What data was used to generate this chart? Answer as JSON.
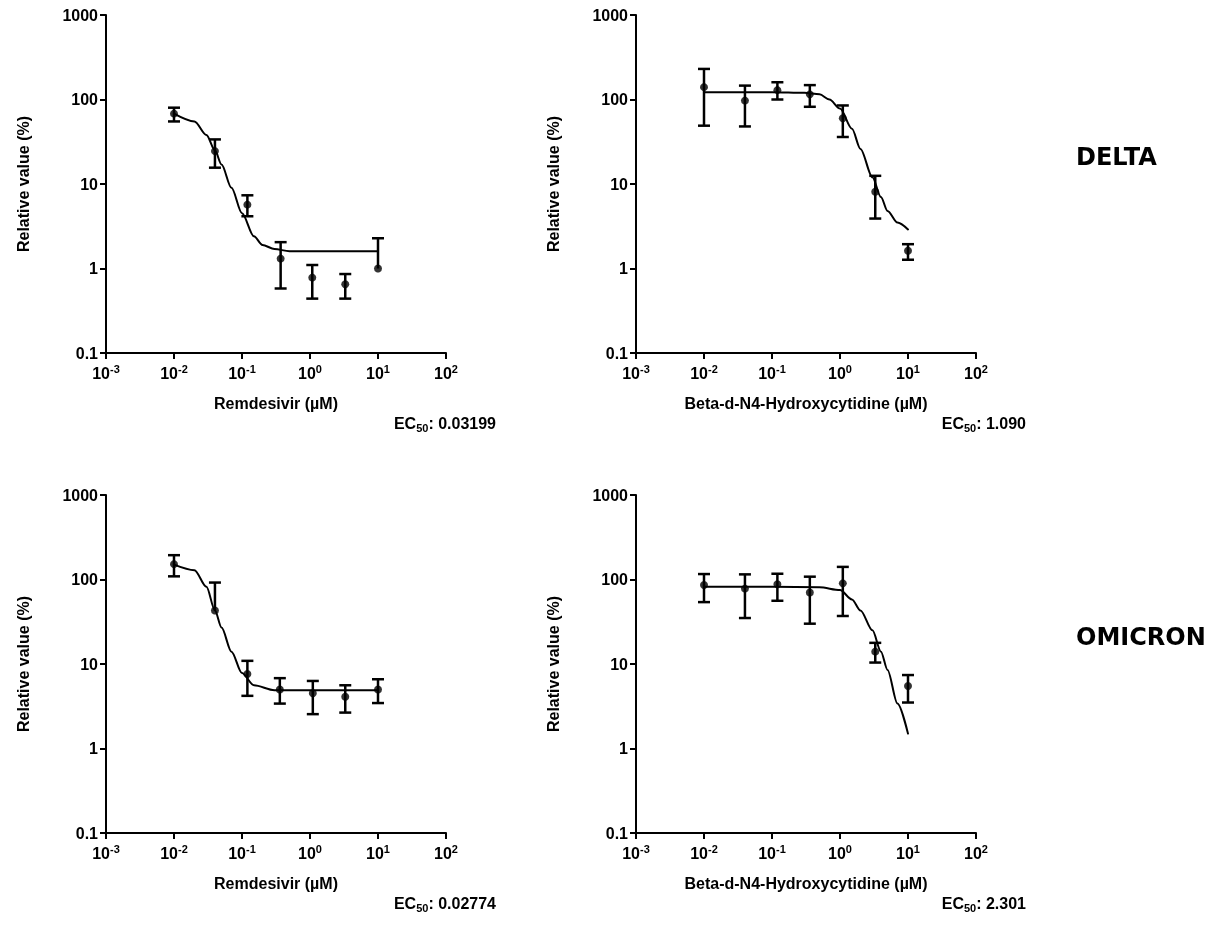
{
  "chart_data": [
    {
      "type": "scatter",
      "xlabel": "Remdesivir (µM)",
      "ylabel": "Relative value (%)",
      "log": "xy",
      "marker": "circle",
      "xlim": [
        0.001,
        100
      ],
      "ylim": [
        0.1,
        1000
      ],
      "xticks": [
        {
          "value": 0.001,
          "label": "10$^{-3}$"
        },
        {
          "value": 0.01,
          "label": "10$^{-2}$"
        },
        {
          "value": 0.1,
          "label": "10$^{-1}$"
        },
        {
          "value": 1,
          "label": "10$^{0}$"
        },
        {
          "value": 10,
          "label": "10$^{1}$"
        },
        {
          "value": 100,
          "label": "10$^{2}$"
        }
      ],
      "yticks": [
        0.1,
        1,
        10,
        100,
        1000
      ],
      "annotations": [
        "EC$_{50}$: 0.03199"
      ],
      "series": [
        {
          "color": "#000000",
          "x": [
            0.01,
            0.04,
            0.12,
            0.37,
            1.08,
            3.3,
            10
          ],
          "values": [
            68,
            24.5,
            5.7,
            1.31,
            0.78,
            0.65,
            1.0
          ],
          "errors": [
            [
              55,
              80
            ],
            [
              15.6,
              33.7
            ],
            [
              4.15,
              7.35
            ],
            [
              0.58,
              2.05
            ],
            [
              0.44,
              1.1
            ],
            [
              0.44,
              0.86
            ],
            [
              1.0,
              2.28
            ]
          ]
        },
        {
          "type": "line",
          "marker": "none",
          "color": "#000000",
          "x": [
            0.01,
            0.02,
            0.03,
            0.04,
            0.05,
            0.07,
            0.1,
            0.15,
            0.2,
            0.3,
            0.5,
            1,
            10
          ],
          "values": [
            68,
            55,
            38,
            25,
            17,
            9,
            4.5,
            2.4,
            1.9,
            1.7,
            1.6,
            1.6,
            1.6
          ]
        }
      ]
    },
    {
      "type": "scatter",
      "xlabel": "Beta-d-N4-Hydroxycytidine (µM)",
      "ylabel": "Relative value (%)",
      "log": "xy",
      "marker": "circle",
      "xlim": [
        0.001,
        100
      ],
      "ylim": [
        0.1,
        1000
      ],
      "xticks": [
        {
          "value": 0.001,
          "label": "10$^{-3}$"
        },
        {
          "value": 0.01,
          "label": "10$^{-2}$"
        },
        {
          "value": 0.1,
          "label": "10$^{-1}$"
        },
        {
          "value": 1,
          "label": "10$^{0}$"
        },
        {
          "value": 10,
          "label": "10$^{1}$"
        },
        {
          "value": 100,
          "label": "10$^{2}$"
        }
      ],
      "yticks": [
        0.1,
        1,
        10,
        100,
        1000
      ],
      "annotations": [
        "EC$_{50}$: 1.090",
        "DELTA"
      ],
      "series": [
        {
          "color": "#000000",
          "x": [
            0.01,
            0.04,
            0.12,
            0.36,
            1.1,
            3.3,
            10
          ],
          "values": [
            140,
            97,
            129,
            115,
            60,
            8.1,
            1.62
          ],
          "errors": [
            [
              49,
              230
            ],
            [
              48,
              146
            ],
            [
              100,
              160
            ],
            [
              82,
              148
            ],
            [
              36,
              85
            ],
            [
              3.9,
              12.5
            ],
            [
              1.27,
              1.94
            ]
          ]
        },
        {
          "type": "line",
          "marker": "none",
          "color": "#000000",
          "x": [
            0.01,
            0.1,
            0.3,
            0.5,
            0.7,
            1,
            1.5,
            2,
            3,
            4,
            5,
            7,
            10
          ],
          "values": [
            122,
            122,
            120,
            115,
            100,
            78,
            45,
            26,
            12,
            7,
            4.8,
            3.5,
            2.9
          ]
        }
      ]
    },
    {
      "type": "scatter",
      "xlabel": "Remdesivir (µM)",
      "ylabel": "Relative value (%)",
      "log": "xy",
      "marker": "circle",
      "xlim": [
        0.001,
        100
      ],
      "ylim": [
        0.1,
        1000
      ],
      "xticks": [
        {
          "value": 0.001,
          "label": "10$^{-3}$"
        },
        {
          "value": 0.01,
          "label": "10$^{-2}$"
        },
        {
          "value": 0.1,
          "label": "10$^{-1}$"
        },
        {
          "value": 1,
          "label": "10$^{0}$"
        },
        {
          "value": 10,
          "label": "10$^{1}$"
        },
        {
          "value": 100,
          "label": "10$^{2}$"
        }
      ],
      "yticks": [
        0.1,
        1,
        10,
        100,
        1000
      ],
      "annotations": [
        "EC$_{50}$: 0.02774"
      ],
      "series": [
        {
          "color": "#000000",
          "x": [
            0.01,
            0.04,
            0.12,
            0.36,
            1.1,
            3.3,
            10
          ],
          "values": [
            152,
            43,
            7.6,
            5.0,
            4.5,
            4.1,
            5.0
          ],
          "errors": [
            [
              109,
              194
            ],
            [
              43,
              92
            ],
            [
              4.2,
              10.9
            ],
            [
              3.4,
              6.8
            ],
            [
              2.55,
              6.3
            ],
            [
              2.66,
              5.6
            ],
            [
              3.45,
              6.6
            ]
          ]
        },
        {
          "type": "line",
          "marker": "none",
          "color": "#000000",
          "x": [
            0.01,
            0.02,
            0.03,
            0.04,
            0.05,
            0.07,
            0.1,
            0.15,
            0.3,
            10
          ],
          "values": [
            150,
            129,
            82,
            43,
            27,
            14,
            7.8,
            5.6,
            4.9,
            4.9
          ]
        }
      ]
    },
    {
      "type": "scatter",
      "xlabel": "Beta-d-N4-Hydroxycytidine (µM)",
      "ylabel": "Relative value (%)",
      "log": "xy",
      "marker": "circle",
      "xlim": [
        0.001,
        100
      ],
      "ylim": [
        0.1,
        1000
      ],
      "xticks": [
        {
          "value": 0.001,
          "label": "10$^{-3}$"
        },
        {
          "value": 0.01,
          "label": "10$^{-2}$"
        },
        {
          "value": 0.1,
          "label": "10$^{-1}$"
        },
        {
          "value": 1,
          "label": "10$^{0}$"
        },
        {
          "value": 10,
          "label": "10$^{1}$"
        },
        {
          "value": 100,
          "label": "10$^{2}$"
        }
      ],
      "yticks": [
        0.1,
        1,
        10,
        100,
        1000
      ],
      "annotations": [
        "EC$_{50}$: 2.301",
        "OMICRON"
      ],
      "series": [
        {
          "color": "#000000",
          "x": [
            0.01,
            0.04,
            0.12,
            0.36,
            1.1,
            3.3,
            10
          ],
          "values": [
            86,
            78,
            88,
            70,
            90,
            14,
            5.5
          ],
          "errors": [
            [
              54,
              116
            ],
            [
              35,
              115
            ],
            [
              56,
              117
            ],
            [
              30,
              108
            ],
            [
              37,
              141
            ],
            [
              10.4,
              17.8
            ],
            [
              3.5,
              7.4
            ]
          ]
        },
        {
          "type": "line",
          "marker": "none",
          "color": "#000000",
          "x": [
            0.01,
            0.1,
            0.5,
            1,
            1.5,
            2,
            3,
            4,
            5,
            7,
            10
          ],
          "values": [
            82,
            82,
            81,
            75,
            58,
            43,
            25,
            14,
            8.5,
            3.4,
            1.5
          ]
        }
      ]
    }
  ]
}
